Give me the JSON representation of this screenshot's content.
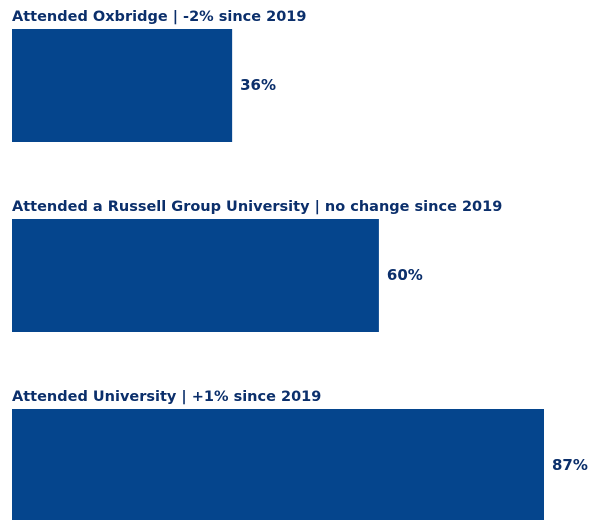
{
  "chart_data": {
    "type": "bar",
    "orientation": "horizontal",
    "categories": [
      "Attended Oxbridge | -2% since 2019",
      "Attended a Russell Group University | no change since 2019",
      "Attended University | +1% since 2019"
    ],
    "values": [
      36,
      60,
      87
    ],
    "value_labels": [
      "36%",
      "60%",
      "87%"
    ],
    "color": "#05458d"
  }
}
